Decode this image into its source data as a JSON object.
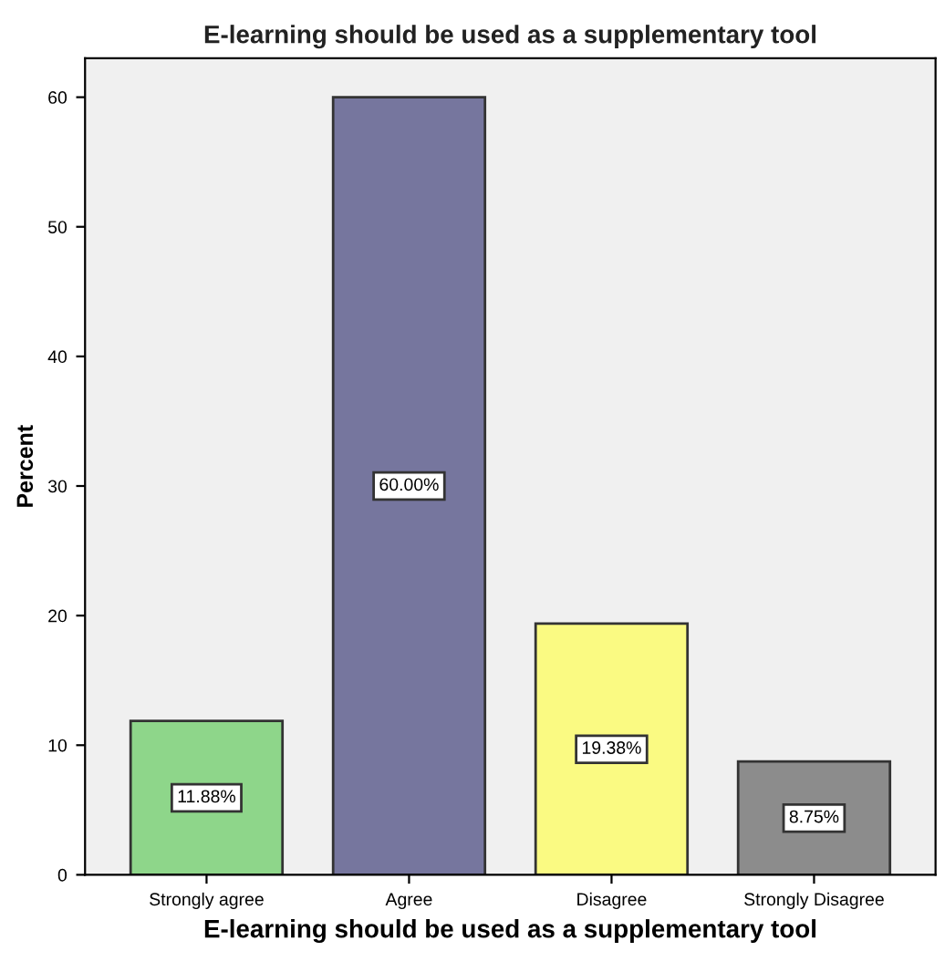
{
  "chart_data": {
    "type": "bar",
    "title": "E-learning should be used as a supplementary tool",
    "xlabel": "E-learning should be used as a supplementary tool",
    "ylabel": "Percent",
    "categories": [
      "Strongly agree",
      "Agree",
      "Disagree",
      "Strongly Disagree"
    ],
    "values": [
      11.88,
      60.0,
      19.38,
      8.75
    ],
    "value_labels": [
      "11.88%",
      "60.00%",
      "19.38%",
      "8.75%"
    ],
    "colors": [
      "#8ed68a",
      "#76769e",
      "#fafa82",
      "#8c8c8c"
    ],
    "ylim": [
      0,
      63
    ],
    "yticks": [
      0,
      10,
      20,
      30,
      40,
      50,
      60
    ],
    "grid": false,
    "legend": false
  }
}
